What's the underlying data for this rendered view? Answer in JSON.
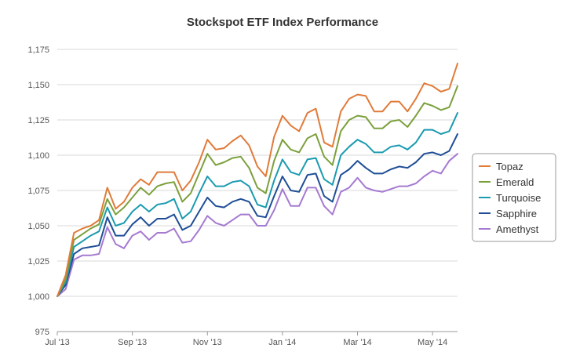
{
  "chart_data": {
    "type": "line",
    "title": "Stockspot ETF Index Performance",
    "xlabel": "",
    "ylabel": "",
    "x_start": "Jul '13",
    "x_end": "Jun '14",
    "ylim": [
      975,
      1175
    ],
    "yticks": [
      {
        "value": 975,
        "label": "975"
      },
      {
        "value": 1000,
        "label": "1,000"
      },
      {
        "value": 1025,
        "label": "1,025"
      },
      {
        "value": 1050,
        "label": "1,050"
      },
      {
        "value": 1075,
        "label": "1,075"
      },
      {
        "value": 1100,
        "label": "1,100"
      },
      {
        "value": 1125,
        "label": "1,125"
      },
      {
        "value": 1150,
        "label": "1,150"
      },
      {
        "value": 1175,
        "label": "1,175"
      }
    ],
    "xticks": [
      {
        "index": 0,
        "label": "Jul '13"
      },
      {
        "index": 9,
        "label": "Sep '13"
      },
      {
        "index": 18,
        "label": "Nov '13"
      },
      {
        "index": 27,
        "label": "Jan '14"
      },
      {
        "index": 36,
        "label": "Mar '14"
      },
      {
        "index": 45,
        "label": "May '14"
      }
    ],
    "grid": true,
    "legend_position": "right",
    "series": [
      {
        "name": "Topaz",
        "color": "#e07b39",
        "values": [
          1000,
          1015,
          1045,
          1048,
          1050,
          1054,
          1077,
          1062,
          1067,
          1077,
          1083,
          1079,
          1088,
          1088,
          1088,
          1075,
          1082,
          1095,
          1111,
          1104,
          1105,
          1110,
          1114,
          1107,
          1092,
          1085,
          1113,
          1128,
          1121,
          1117,
          1130,
          1133,
          1109,
          1106,
          1131,
          1140,
          1143,
          1142,
          1131,
          1131,
          1138,
          1138,
          1131,
          1140,
          1151,
          1149,
          1145,
          1147,
          1165
        ]
      },
      {
        "name": "Emerald",
        "color": "#7ba03c",
        "values": [
          1000,
          1012,
          1040,
          1044,
          1048,
          1051,
          1069,
          1058,
          1063,
          1070,
          1077,
          1072,
          1078,
          1080,
          1081,
          1067,
          1073,
          1087,
          1101,
          1093,
          1095,
          1098,
          1099,
          1091,
          1077,
          1073,
          1096,
          1111,
          1104,
          1102,
          1112,
          1115,
          1099,
          1093,
          1117,
          1125,
          1128,
          1127,
          1119,
          1119,
          1124,
          1125,
          1120,
          1128,
          1137,
          1135,
          1132,
          1134,
          1149
        ]
      },
      {
        "name": "Turquoise",
        "color": "#1b9bb0",
        "values": [
          1000,
          1010,
          1035,
          1039,
          1043,
          1046,
          1063,
          1050,
          1052,
          1060,
          1065,
          1060,
          1065,
          1066,
          1069,
          1055,
          1060,
          1073,
          1085,
          1078,
          1078,
          1081,
          1082,
          1078,
          1065,
          1063,
          1082,
          1097,
          1088,
          1086,
          1097,
          1098,
          1083,
          1079,
          1100,
          1106,
          1111,
          1108,
          1102,
          1102,
          1106,
          1107,
          1104,
          1109,
          1118,
          1118,
          1115,
          1117,
          1130
        ]
      },
      {
        "name": "Sapphire",
        "color": "#1f4e96",
        "values": [
          1000,
          1008,
          1030,
          1034,
          1035,
          1036,
          1056,
          1043,
          1043,
          1051,
          1056,
          1050,
          1055,
          1055,
          1058,
          1047,
          1050,
          1060,
          1070,
          1064,
          1063,
          1067,
          1069,
          1067,
          1057,
          1056,
          1071,
          1085,
          1075,
          1074,
          1086,
          1087,
          1071,
          1067,
          1086,
          1090,
          1096,
          1091,
          1087,
          1087,
          1090,
          1092,
          1091,
          1095,
          1101,
          1102,
          1100,
          1103,
          1115
        ]
      },
      {
        "name": "Amethyst",
        "color": "#a57ad1",
        "values": [
          1000,
          1005,
          1026,
          1029,
          1029,
          1030,
          1049,
          1037,
          1034,
          1043,
          1046,
          1040,
          1045,
          1045,
          1048,
          1038,
          1039,
          1047,
          1057,
          1052,
          1050,
          1054,
          1058,
          1058,
          1050,
          1050,
          1061,
          1076,
          1064,
          1064,
          1077,
          1077,
          1064,
          1058,
          1074,
          1077,
          1084,
          1077,
          1075,
          1074,
          1076,
          1078,
          1078,
          1080,
          1085,
          1089,
          1087,
          1096,
          1101
        ]
      }
    ]
  }
}
